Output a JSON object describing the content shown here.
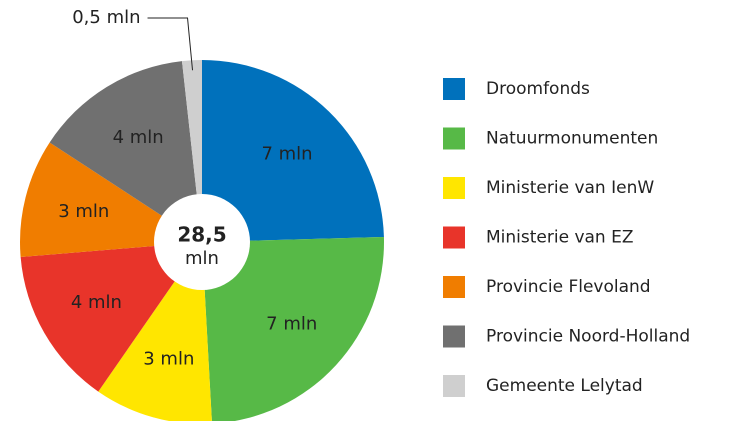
{
  "chart_data": {
    "type": "donut",
    "categories": [
      "Droomfonds",
      "Natuurmonumenten",
      "Ministerie van IenW",
      "Ministerie van EZ",
      "Provincie Flevoland",
      "Provincie Noord-Holland",
      "Gemeente Lelytad"
    ],
    "values": [
      7,
      7,
      3,
      4,
      3,
      4,
      0.5
    ],
    "value_labels": [
      "7 mln",
      "7 mln",
      "3 mln",
      "4 mln",
      "3 mln",
      "4 mln",
      "0,5 mln"
    ],
    "colors": [
      "#0071bc",
      "#57b947",
      "#ffe600",
      "#e8342a",
      "#f07d00",
      "#707070",
      "#cfcfcf"
    ],
    "center_value": "28,5",
    "center_unit": "mln"
  }
}
